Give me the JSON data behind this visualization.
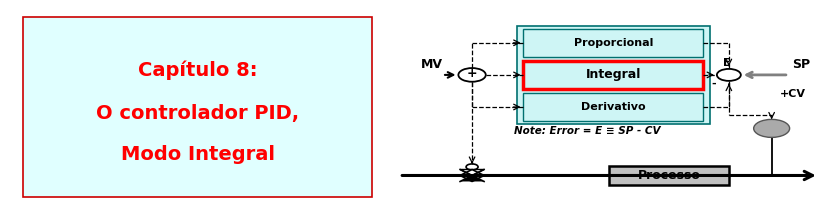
{
  "left_box_bg": "#e0ffff",
  "left_box_border": "#cc0000",
  "left_text_line1": "Capítulo 8:",
  "left_text_line2": "O controlador PID,",
  "left_text_line3": "Modo Integral",
  "left_text_color": "#ff0000",
  "pid_box_bg": "#cef5f5",
  "pid_box_border": "#007070",
  "prop_label": "Proporcional",
  "integ_label": "Integral",
  "deriv_label": "Derivativo",
  "integ_border_color": "#ff0000",
  "processo_label": "Processo",
  "processo_bg": "#c0c0c0",
  "note_text": "Note: Error = E ≡ SP - CV",
  "mv_label": "MV",
  "sp_label": "SP",
  "e_label": "E",
  "cv_label": "+CV",
  "plus_label": "+",
  "minus_label": "-",
  "cv_circle_color": "#aaaaaa"
}
